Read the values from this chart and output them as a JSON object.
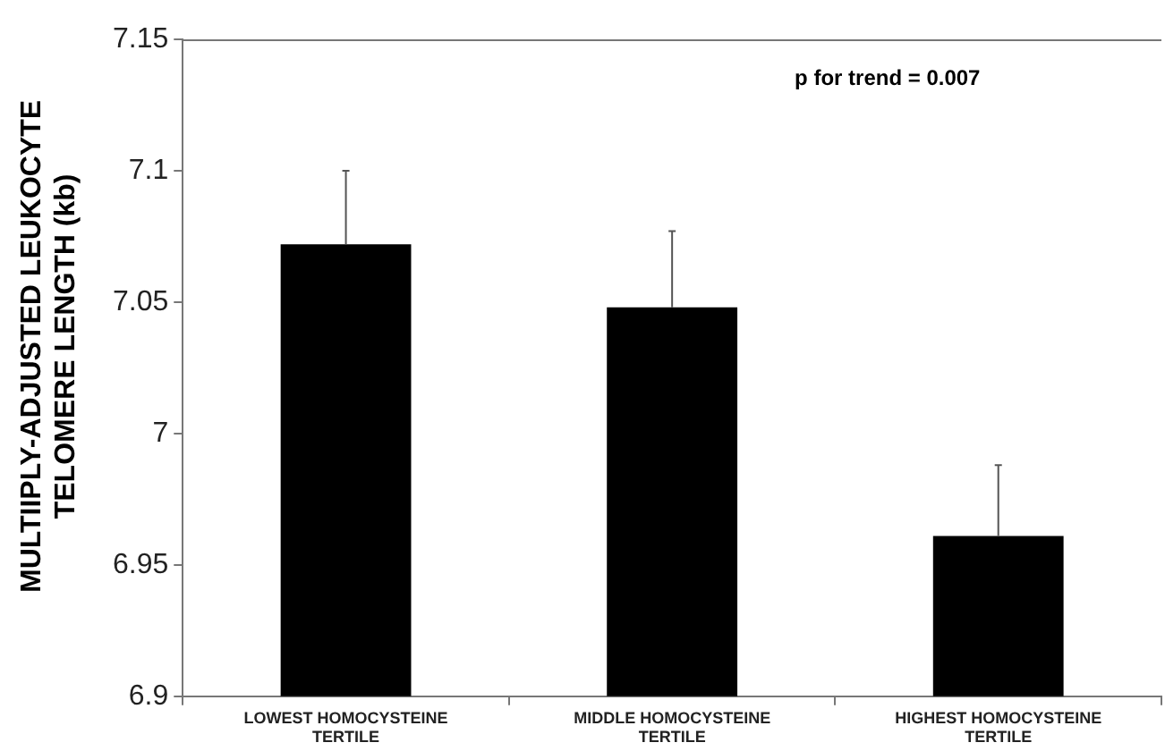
{
  "chart_data": {
    "type": "bar",
    "ylabel": "MULTIIPLY-ADJUSTED LEUKOCYTE TELOMERE LENGTH (kb)",
    "categories": [
      "LOWEST HOMOCYSTEINE TERTILE",
      "MIDDLE HOMOCYSTEINE TERTILE",
      "HIGHEST HOMOCYSTEINE TERTILE"
    ],
    "values": [
      7.072,
      7.048,
      6.961
    ],
    "color": "#000000",
    "errors": [
      [
        7.072,
        7.1
      ],
      [
        7.048,
        7.077
      ],
      [
        6.961,
        6.988
      ]
    ],
    "ylim": [
      6.9,
      7.15
    ],
    "yticks": [
      6.9,
      6.95,
      7,
      7.05,
      7.1,
      7.15
    ],
    "grid": false,
    "legend": false,
    "annotations": [
      "p for trend = 0.007"
    ]
  }
}
